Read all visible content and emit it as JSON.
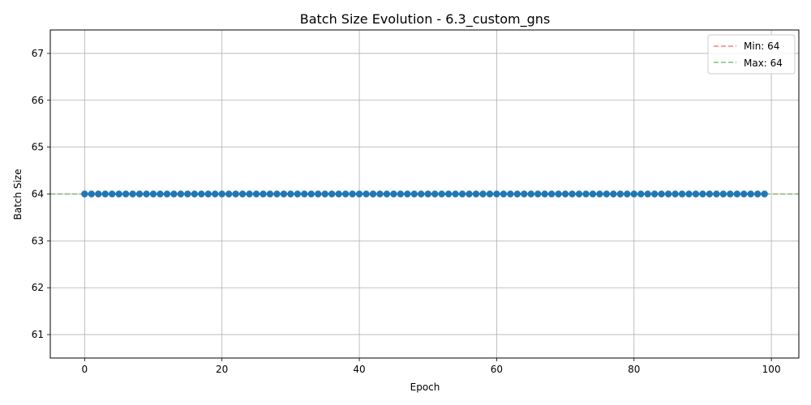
{
  "chart_data": {
    "type": "line",
    "title": "Batch Size Evolution - 6.3_custom_gns",
    "xlabel": "Epoch",
    "ylabel": "Batch Size",
    "xlim": [
      -5,
      104
    ],
    "ylim": [
      60.5,
      67.5
    ],
    "xticks": [
      0,
      20,
      40,
      60,
      80,
      100
    ],
    "yticks": [
      61,
      62,
      63,
      64,
      65,
      66,
      67
    ],
    "grid": true,
    "legend_position": "upper-right",
    "series": [
      {
        "color": "#1f77b4",
        "marker": "circle",
        "x_start": 0,
        "x_end": 99,
        "constant_value": 64
      }
    ],
    "reference_lines": [
      {
        "label": "Min: 64",
        "value": 64,
        "color": "#ff7f7f",
        "style": "dashed"
      },
      {
        "label": "Max: 64",
        "value": 64,
        "color": "#7fbf7f",
        "style": "dashed"
      }
    ]
  }
}
